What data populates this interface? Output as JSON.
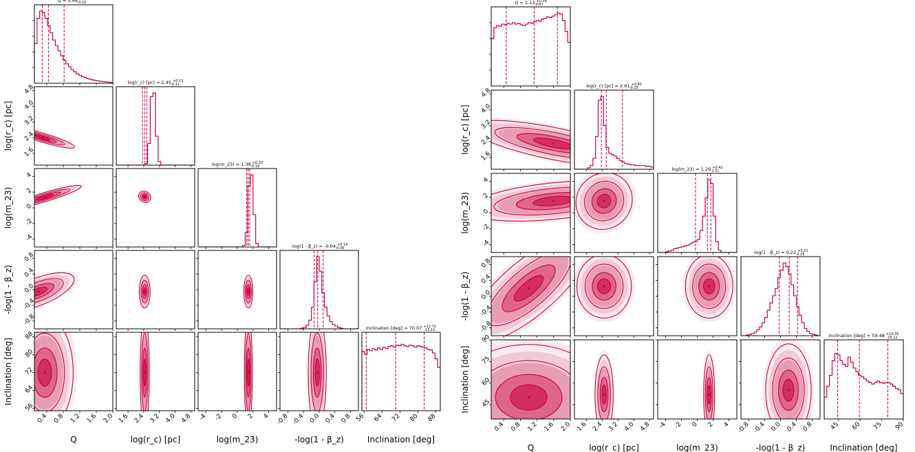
{
  "theme": {
    "accent": "#c8003c",
    "contour": "#c8003c",
    "axes": "#000000",
    "background": "#ffffff"
  },
  "chart_data": [
    {
      "type": "corner",
      "panel": "left",
      "params": [
        {
          "key": "Q",
          "axis_label": "Q",
          "ticks": [
            "0.4",
            "0.8",
            "1.2",
            "1.6",
            "2.0"
          ],
          "range": [
            0.1,
            2.0
          ],
          "title": "Q = 0.44",
          "title_sup": "+0.38",
          "title_sub": "-0.15",
          "quantiles": [
            0.29,
            0.44,
            0.82
          ],
          "histogram": [
            0.55,
            0.9,
            1.0,
            0.98,
            0.9,
            0.8,
            0.7,
            0.6,
            0.52,
            0.45,
            0.38,
            0.32,
            0.27,
            0.23,
            0.19,
            0.16,
            0.13,
            0.11,
            0.09,
            0.08,
            0.065,
            0.055,
            0.045,
            0.038,
            0.032,
            0.027,
            0.022,
            0.018,
            0.015,
            0.012
          ]
        },
        {
          "key": "log_rc",
          "axis_label": "log(r_c) [pc]",
          "ticks": [
            "1.6",
            "2.4",
            "3.2",
            "4.0",
            "4.8"
          ],
          "range": [
            1.0,
            5.0
          ],
          "title": "log(r_c) [pc] = 2.45",
          "title_sup": "+0.11",
          "title_sub": "-0.11",
          "quantiles": [
            2.34,
            2.45,
            2.56
          ],
          "histogram": [
            0,
            0,
            0,
            0,
            0,
            0,
            0,
            0,
            0,
            0,
            0,
            0.02,
            0.3,
            0.95,
            1.0,
            0.4,
            0.05,
            0,
            0,
            0,
            0,
            0,
            0,
            0,
            0,
            0,
            0,
            0,
            0,
            0
          ]
        },
        {
          "key": "log_m23",
          "axis_label": "log(m_23)",
          "ticks": [
            "-4",
            "-2",
            "0",
            "2",
            "4"
          ],
          "range": [
            -5,
            5
          ],
          "title": "log(m_23) = 1.38",
          "title_sup": "+0.20",
          "title_sub": "-0.19",
          "quantiles": [
            1.19,
            1.38,
            1.58
          ],
          "histogram": [
            0,
            0,
            0,
            0,
            0,
            0,
            0,
            0,
            0,
            0,
            0,
            0,
            0,
            0,
            0,
            0,
            0,
            0.02,
            0.2,
            0.85,
            1.0,
            0.45,
            0.05,
            0,
            0,
            0,
            0,
            0,
            0,
            0
          ]
        },
        {
          "key": "beta_z",
          "axis_label": "-log(1 - β_z)",
          "ticks": [
            "-0.8",
            "-0.4",
            "0.0",
            "0.4",
            "0.8"
          ],
          "range": [
            -1.0,
            1.0
          ],
          "title": "-log(1 - β_z) = -0.04",
          "title_sup": "+0.14",
          "title_sub": "-0.09",
          "quantiles": [
            -0.13,
            -0.04,
            0.1
          ],
          "histogram": [
            0,
            0,
            0,
            0,
            0,
            0,
            0,
            0,
            0.01,
            0.02,
            0.05,
            0.12,
            0.3,
            0.65,
            1.0,
            0.8,
            0.5,
            0.3,
            0.18,
            0.1,
            0.06,
            0.04,
            0.02,
            0.01,
            0,
            0,
            0,
            0,
            0,
            0
          ]
        },
        {
          "key": "incl",
          "axis_label": "Inclination [deg]",
          "ticks": [
            "56",
            "64",
            "72",
            "80",
            "88"
          ],
          "range": [
            55,
            90
          ],
          "title": "Inclination [deg] = 70.07",
          "title_sup": "+12.72",
          "title_sub": "-13.13",
          "quantiles": [
            56.94,
            70.07,
            82.79
          ],
          "histogram": [
            0.82,
            0.78,
            0.85,
            0.83,
            0.86,
            0.84,
            0.87,
            0.85,
            0.88,
            0.86,
            0.89,
            0.9,
            0.88,
            0.91,
            0.9,
            0.92,
            0.9,
            0.89,
            0.91,
            0.9,
            0.88,
            0.9,
            0.89,
            0.88,
            0.87,
            0.85,
            0.84,
            0.8,
            0.72,
            0.6
          ]
        }
      ],
      "contours": [
        {
          "pair": [
            0,
            1
          ],
          "peak": [
            0.3,
            2.4
          ],
          "spread": [
            0.35,
            0.1
          ],
          "tilt": -0.3
        },
        {
          "pair": [
            0,
            2
          ],
          "peak": [
            0.35,
            1.35
          ],
          "spread": [
            0.4,
            0.25
          ],
          "tilt": 0.3
        },
        {
          "pair": [
            0,
            3
          ],
          "peak": [
            0.2,
            -0.05
          ],
          "spread": [
            0.4,
            0.15
          ],
          "tilt": 0.4
        },
        {
          "pair": [
            0,
            4
          ],
          "peak": [
            0.35,
            72
          ],
          "spread": [
            0.3,
            11
          ],
          "tilt": 0
        },
        {
          "pair": [
            1,
            2
          ],
          "peak": [
            2.45,
            1.4
          ],
          "spread": [
            0.14,
            0.3
          ],
          "tilt": -0.6
        },
        {
          "pair": [
            1,
            3
          ],
          "peak": [
            2.45,
            -0.05
          ],
          "spread": [
            0.12,
            0.18
          ],
          "tilt": 0
        },
        {
          "pair": [
            1,
            4
          ],
          "peak": [
            2.45,
            72
          ],
          "spread": [
            0.1,
            11
          ],
          "tilt": 0
        },
        {
          "pair": [
            2,
            3
          ],
          "peak": [
            1.4,
            -0.05
          ],
          "spread": [
            0.25,
            0.18
          ],
          "tilt": 0
        },
        {
          "pair": [
            2,
            4
          ],
          "peak": [
            1.4,
            72
          ],
          "spread": [
            0.22,
            11
          ],
          "tilt": 0
        },
        {
          "pair": [
            3,
            4
          ],
          "peak": [
            -0.05,
            72
          ],
          "spread": [
            0.1,
            11
          ],
          "tilt": 0
        }
      ]
    },
    {
      "type": "corner",
      "panel": "right",
      "params": [
        {
          "key": "Q",
          "axis_label": "Q",
          "ticks": [
            "0.4",
            "0.8",
            "1.2",
            "1.6",
            "2.0"
          ],
          "range": [
            0.1,
            2.0
          ],
          "title": "Q = 1.13",
          "title_sup": "+0.56",
          "title_sub": "-0.67",
          "quantiles": [
            0.46,
            1.13,
            1.69
          ],
          "histogram": [
            0.65,
            0.8,
            0.83,
            0.82,
            0.85,
            0.84,
            0.86,
            0.85,
            0.87,
            0.85,
            0.86,
            0.84,
            0.83,
            0.85,
            0.87,
            0.86,
            0.88,
            0.9,
            0.89,
            0.92,
            0.93,
            0.95,
            0.94,
            0.96,
            0.98,
            1.0,
            0.99,
            0.9,
            0.75,
            0.6
          ]
        },
        {
          "key": "log_rc",
          "axis_label": "log(r_c) [pc]",
          "ticks": [
            "1.6",
            "2.4",
            "3.2",
            "4.0",
            "4.8"
          ],
          "range": [
            1.0,
            5.0
          ],
          "title": "log(r_c) [pc] = 2.61",
          "title_sup": "+0.82",
          "title_sub": "-0.25",
          "quantiles": [
            2.36,
            2.61,
            3.43
          ],
          "histogram": [
            0,
            0,
            0,
            0,
            0,
            0.02,
            0.05,
            0.15,
            0.45,
            0.95,
            1.0,
            0.6,
            0.3,
            0.22,
            0.2,
            0.18,
            0.15,
            0.12,
            0.1,
            0.08,
            0.07,
            0.06,
            0.06,
            0.05,
            0.05,
            0.05,
            0.05,
            0.04,
            0.04,
            0.03
          ]
        },
        {
          "key": "log_m23",
          "axis_label": "log(m_23)",
          "ticks": [
            "-4",
            "-2",
            "0",
            "2",
            "4"
          ],
          "range": [
            -5,
            5
          ],
          "title": "log(m_23) = 1.29",
          "title_sup": "+0.42",
          "title_sub": "-1.51",
          "quantiles": [
            -0.22,
            1.29,
            1.71
          ],
          "histogram": [
            0,
            0,
            0,
            0.01,
            0.02,
            0.03,
            0.05,
            0.06,
            0.07,
            0.08,
            0.09,
            0.1,
            0.12,
            0.14,
            0.15,
            0.18,
            0.3,
            0.5,
            0.75,
            1.0,
            0.95,
            0.5,
            0.15,
            0.03,
            0,
            0,
            0,
            0,
            0,
            0
          ]
        },
        {
          "key": "beta_z",
          "axis_label": "-log(1 - β_z)",
          "ticks": [
            "-0.8",
            "-0.4",
            "0.0",
            "0.4",
            "0.8"
          ],
          "range": [
            -1.0,
            1.0
          ],
          "title": "-log(1 - β_z) = 0.22",
          "title_sup": "+0.21",
          "title_sub": "-0.25",
          "quantiles": [
            -0.03,
            0.22,
            0.43
          ],
          "histogram": [
            0,
            0,
            0.01,
            0.02,
            0.03,
            0.05,
            0.08,
            0.12,
            0.18,
            0.25,
            0.35,
            0.45,
            0.55,
            0.65,
            0.8,
            0.9,
            1.0,
            0.95,
            0.85,
            0.7,
            0.55,
            0.4,
            0.28,
            0.18,
            0.1,
            0.06,
            0.03,
            0.02,
            0.01,
            0
          ]
        },
        {
          "key": "incl",
          "axis_label": "Inclination [deg]",
          "ticks": [
            "45",
            "60",
            "75",
            "90"
          ],
          "range": [
            35,
            90
          ],
          "title": "Inclination [deg] = 59.48",
          "title_sup": "+19.76",
          "title_sub": "-15.12",
          "quantiles": [
            44.36,
            59.48,
            79.24
          ],
          "histogram": [
            0.3,
            0.45,
            0.6,
            0.8,
            0.9,
            0.88,
            0.8,
            0.75,
            0.72,
            0.85,
            0.78,
            0.7,
            0.65,
            0.6,
            0.58,
            0.55,
            0.52,
            0.5,
            0.48,
            0.5,
            0.52,
            0.5,
            0.49,
            0.5,
            0.5,
            0.48,
            0.45,
            0.42,
            0.4,
            0.35
          ]
        }
      ],
      "contours": [
        {
          "pair": [
            0,
            1
          ],
          "peak": [
            1.6,
            2.3
          ],
          "spread": [
            0.9,
            0.35
          ],
          "tilt": -0.2
        },
        {
          "pair": [
            0,
            2
          ],
          "peak": [
            1.6,
            1.5
          ],
          "spread": [
            0.9,
            1.0
          ],
          "tilt": 0.1
        },
        {
          "pair": [
            0,
            3
          ],
          "peak": [
            1.0,
            0.2
          ],
          "spread": [
            0.8,
            0.3
          ],
          "tilt": 0.85
        },
        {
          "pair": [
            0,
            4
          ],
          "peak": [
            1.0,
            50
          ],
          "spread": [
            0.8,
            16
          ],
          "tilt": 0
        },
        {
          "pair": [
            1,
            2
          ],
          "peak": [
            2.5,
            1.5
          ],
          "spread": [
            0.6,
            1.6
          ],
          "tilt": -0.9
        },
        {
          "pair": [
            1,
            3
          ],
          "peak": [
            2.5,
            0.25
          ],
          "spread": [
            0.6,
            0.35
          ],
          "tilt": 0
        },
        {
          "pair": [
            1,
            4
          ],
          "peak": [
            2.5,
            52
          ],
          "spread": [
            0.2,
            12
          ],
          "tilt": 0
        },
        {
          "pair": [
            2,
            3
          ],
          "peak": [
            1.5,
            0.25
          ],
          "spread": [
            1.3,
            0.35
          ],
          "tilt": 0
        },
        {
          "pair": [
            2,
            4
          ],
          "peak": [
            1.5,
            52
          ],
          "spread": [
            0.3,
            12
          ],
          "tilt": 0
        },
        {
          "pair": [
            3,
            4
          ],
          "peak": [
            0.2,
            55
          ],
          "spread": [
            0.25,
            14
          ],
          "tilt": 0
        }
      ]
    }
  ]
}
